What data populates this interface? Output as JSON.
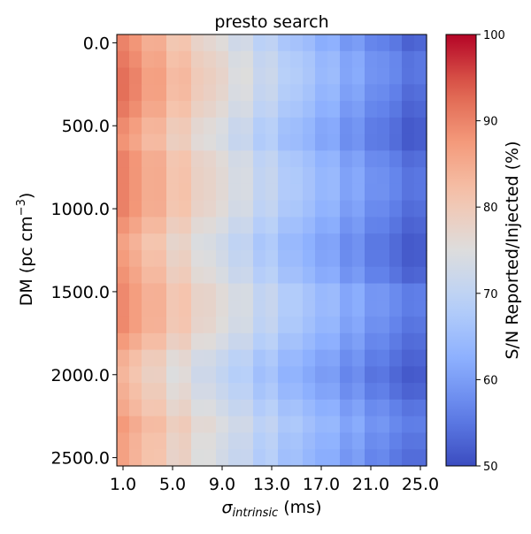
{
  "chart_data": {
    "type": "heatmap",
    "title": "presto search",
    "xlabel_symbol": "σ",
    "xlabel_subscript": "intrinsic",
    "xlabel_suffix": " (ms)",
    "ylabel_main": "DM (pc cm",
    "ylabel_sup": "−3",
    "ylabel_close": ")",
    "colorbar_label": "S/N Reported/Injected (%)",
    "colormap": "coolwarm",
    "vmin": 50,
    "vmax": 100,
    "x_tick_labels": [
      "1.0",
      "5.0",
      "9.0",
      "13.0",
      "17.0",
      "21.0",
      "25.0"
    ],
    "x_tick_values": [
      1,
      5,
      9,
      13,
      17,
      21,
      25
    ],
    "y_tick_labels": [
      "0.0",
      "500.0",
      "1000.0",
      "1500.0",
      "2000.0",
      "2500.0"
    ],
    "y_tick_values": [
      0,
      500,
      1000,
      1500,
      2000,
      2500
    ],
    "colorbar_ticks": [
      "50",
      "60",
      "70",
      "80",
      "90",
      "100"
    ],
    "colorbar_tick_values": [
      50,
      60,
      70,
      80,
      90,
      100
    ],
    "x": [
      1,
      2,
      3,
      4,
      5,
      6,
      7,
      8,
      9,
      10,
      11,
      12,
      13,
      14,
      15,
      16,
      17,
      18,
      19,
      20,
      21,
      22,
      23,
      24,
      25
    ],
    "y": [
      0,
      100,
      200,
      300,
      400,
      500,
      600,
      700,
      800,
      900,
      1000,
      1100,
      1200,
      1300,
      1400,
      1500,
      1600,
      1700,
      1800,
      1900,
      2000,
      2100,
      2200,
      2300,
      2400,
      2500
    ],
    "row_profiles": [
      {
        "start": 90,
        "end": 52
      },
      {
        "start": 91,
        "end": 54
      },
      {
        "start": 92,
        "end": 54
      },
      {
        "start": 92,
        "end": 53
      },
      {
        "start": 91,
        "end": 52
      },
      {
        "start": 89,
        "end": 51
      },
      {
        "start": 88,
        "end": 51
      },
      {
        "start": 90,
        "end": 53
      },
      {
        "start": 90,
        "end": 54
      },
      {
        "start": 90,
        "end": 54
      },
      {
        "start": 90,
        "end": 53
      },
      {
        "start": 88,
        "end": 52
      },
      {
        "start": 86,
        "end": 51
      },
      {
        "start": 87,
        "end": 51
      },
      {
        "start": 88,
        "end": 52
      },
      {
        "start": 89,
        "end": 55
      },
      {
        "start": 89,
        "end": 55
      },
      {
        "start": 89,
        "end": 54
      },
      {
        "start": 87,
        "end": 53
      },
      {
        "start": 84,
        "end": 52
      },
      {
        "start": 83,
        "end": 51
      },
      {
        "start": 84,
        "end": 52
      },
      {
        "start": 85,
        "end": 54
      },
      {
        "start": 87,
        "end": 55
      },
      {
        "start": 86,
        "end": 54
      },
      {
        "start": 86,
        "end": 53
      }
    ]
  }
}
